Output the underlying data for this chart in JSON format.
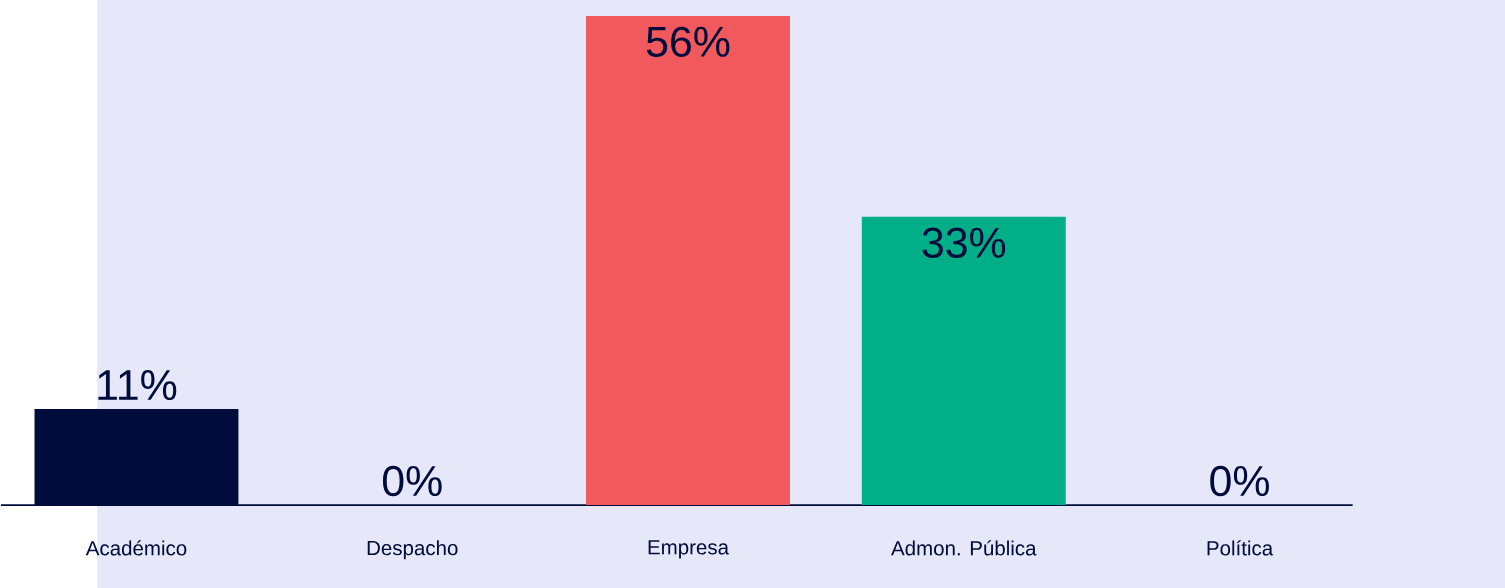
{
  "chart_data": {
    "type": "bar",
    "categories": [
      "Académico",
      "Despacho",
      "Empresa",
      "Admon. Pública",
      "Política"
    ],
    "values": [
      11,
      0,
      56,
      33,
      0
    ],
    "colors": [
      "#000c3b",
      "#000c3b",
      "#f2595c",
      "#00ae87",
      "#000c3b"
    ],
    "value_labels": [
      "11%",
      "0%",
      "56%",
      "33%",
      "0%"
    ]
  }
}
